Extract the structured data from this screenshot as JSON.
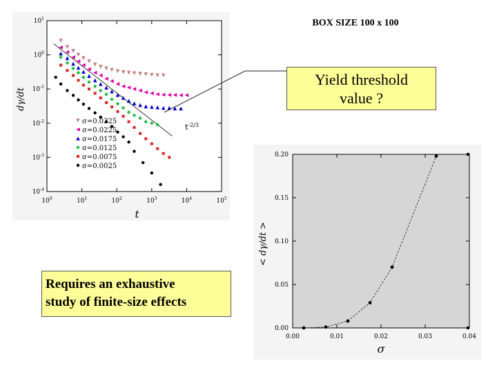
{
  "header": {
    "title": "BOX SIZE 100 x 100"
  },
  "callouts": {
    "yield_line1": "Yield threshold",
    "yield_line2": "value ?",
    "req_line1": "Requires an exhaustive",
    "req_line2": "study of finite-size effects"
  },
  "chart_data": [
    {
      "type": "scatter",
      "xscale": "log",
      "yscale": "log",
      "xlim": [
        1,
        1000000
      ],
      "ylim": [
        0.0001,
        10
      ],
      "x_tick_labels": [
        "10^0",
        "10^1",
        "10^2",
        "10^3",
        "10^4",
        "10^5"
      ],
      "y_tick_labels": [
        "10^-4",
        "10^-3",
        "10^-2",
        "10^-1",
        "10^0",
        "10^1"
      ],
      "xlabel": "t",
      "ylabel": "dγ/dt",
      "annotation": "t^-2/3",
      "series": [
        {
          "name": "σ=0.0325",
          "color": "#c08080",
          "marker": "triangle-down",
          "points": [
            [
              3,
              2.6
            ],
            [
              5,
              1.7
            ],
            [
              8,
              1.3
            ],
            [
              12,
              1.0
            ],
            [
              18,
              0.8
            ],
            [
              28,
              0.65
            ],
            [
              45,
              0.52
            ],
            [
              70,
              0.45
            ],
            [
              110,
              0.4
            ],
            [
              170,
              0.36
            ],
            [
              270,
              0.33
            ],
            [
              420,
              0.31
            ],
            [
              650,
              0.3
            ],
            [
              1000,
              0.29
            ],
            [
              1600,
              0.28
            ],
            [
              2500,
              0.27
            ],
            [
              4000,
              0.26
            ],
            [
              6300,
              0.25
            ],
            [
              10000,
              0.25
            ]
          ]
        },
        {
          "name": "σ=0.0225",
          "color": "#dd00aa",
          "marker": "triangle-left",
          "points": [
            [
              3,
              1.65
            ],
            [
              5,
              1.2
            ],
            [
              8,
              0.85
            ],
            [
              12,
              0.65
            ],
            [
              18,
              0.5
            ],
            [
              28,
              0.38
            ],
            [
              45,
              0.3
            ],
            [
              70,
              0.25
            ],
            [
              110,
              0.2
            ],
            [
              170,
              0.17
            ],
            [
              270,
              0.14
            ],
            [
              420,
              0.12
            ],
            [
              650,
              0.11
            ],
            [
              1000,
              0.1
            ],
            [
              1600,
              0.09
            ],
            [
              2500,
              0.08
            ],
            [
              4000,
              0.075
            ],
            [
              6300,
              0.07
            ],
            [
              10000,
              0.068
            ],
            [
              16000,
              0.067
            ],
            [
              25000,
              0.067
            ],
            [
              40000,
              0.066
            ],
            [
              63000,
              0.066
            ]
          ]
        },
        {
          "name": "σ=0.0175",
          "color": "#0000cc",
          "marker": "triangle-up",
          "points": [
            [
              3,
              1.1
            ],
            [
              5,
              0.8
            ],
            [
              8,
              0.55
            ],
            [
              12,
              0.42
            ],
            [
              18,
              0.32
            ],
            [
              28,
              0.24
            ],
            [
              45,
              0.18
            ],
            [
              70,
              0.14
            ],
            [
              110,
              0.11
            ],
            [
              170,
              0.085
            ],
            [
              270,
              0.067
            ],
            [
              420,
              0.055
            ],
            [
              650,
              0.045
            ],
            [
              1000,
              0.038
            ],
            [
              1600,
              0.034
            ],
            [
              2500,
              0.031
            ],
            [
              4000,
              0.03
            ],
            [
              6300,
              0.029
            ],
            [
              10000,
              0.028
            ],
            [
              16000,
              0.028
            ],
            [
              25000,
              0.027
            ],
            [
              40000,
              0.027
            ]
          ]
        },
        {
          "name": "σ=0.0125",
          "color": "#22bb44",
          "marker": "diamond",
          "points": [
            [
              3,
              0.85
            ],
            [
              5,
              0.58
            ],
            [
              8,
              0.4
            ],
            [
              12,
              0.3
            ],
            [
              18,
              0.22
            ],
            [
              28,
              0.16
            ],
            [
              45,
              0.12
            ],
            [
              70,
              0.09
            ],
            [
              110,
              0.07
            ],
            [
              170,
              0.05
            ],
            [
              270,
              0.037
            ],
            [
              420,
              0.028
            ],
            [
              650,
              0.021
            ],
            [
              1000,
              0.017
            ],
            [
              1600,
              0.014
            ],
            [
              2500,
              0.011
            ],
            [
              4000,
              0.01
            ],
            [
              6300,
              0.009
            ]
          ]
        },
        {
          "name": "σ=0.0075",
          "color": "#dd2222",
          "marker": "square",
          "points": [
            [
              3,
              0.5
            ],
            [
              5,
              0.35
            ],
            [
              8,
              0.25
            ],
            [
              12,
              0.18
            ],
            [
              18,
              0.13
            ],
            [
              28,
              0.1
            ],
            [
              45,
              0.075
            ],
            [
              70,
              0.055
            ],
            [
              110,
              0.04
            ],
            [
              170,
              0.03
            ],
            [
              270,
              0.022
            ],
            [
              420,
              0.016
            ],
            [
              650,
              0.011
            ],
            [
              1000,
              0.0075
            ],
            [
              1600,
              0.005
            ],
            [
              2500,
              0.0035
            ],
            [
              4000,
              0.0025
            ],
            [
              6300,
              0.0018
            ],
            [
              10000,
              0.0013
            ],
            [
              16000,
              0.001
            ]
          ]
        },
        {
          "name": "σ=0.0025",
          "color": "#000000",
          "marker": "circle",
          "points": [
            [
              2,
              0.22
            ],
            [
              3,
              0.14
            ],
            [
              5,
              0.09
            ],
            [
              8,
              0.065
            ],
            [
              12,
              0.048
            ],
            [
              18,
              0.036
            ],
            [
              28,
              0.027
            ],
            [
              45,
              0.02
            ],
            [
              70,
              0.015
            ],
            [
              110,
              0.011
            ],
            [
              170,
              0.008
            ],
            [
              270,
              0.0055
            ],
            [
              420,
              0.004
            ],
            [
              650,
              0.0028
            ],
            [
              1000,
              0.0015
            ],
            [
              2000,
              0.0007
            ],
            [
              4000,
              0.00035
            ],
            [
              8000,
              0.00016
            ]
          ]
        }
      ]
    },
    {
      "type": "line",
      "xlim": [
        0,
        0.04
      ],
      "ylim": [
        0,
        0.2
      ],
      "x_ticks": [
        "0.00",
        "0.01",
        "0.02",
        "0.03",
        "0.04"
      ],
      "y_ticks": [
        "0.00",
        "0.05",
        "0.10",
        "0.15",
        "0.20"
      ],
      "xlabel": "σ",
      "ylabel": "< dγ/dt >",
      "x": [
        0.0025,
        0.0075,
        0.0125,
        0.0175,
        0.0225,
        0.0325
      ],
      "y": [
        0.0,
        0.001,
        0.008,
        0.029,
        0.07,
        0.198
      ]
    }
  ]
}
